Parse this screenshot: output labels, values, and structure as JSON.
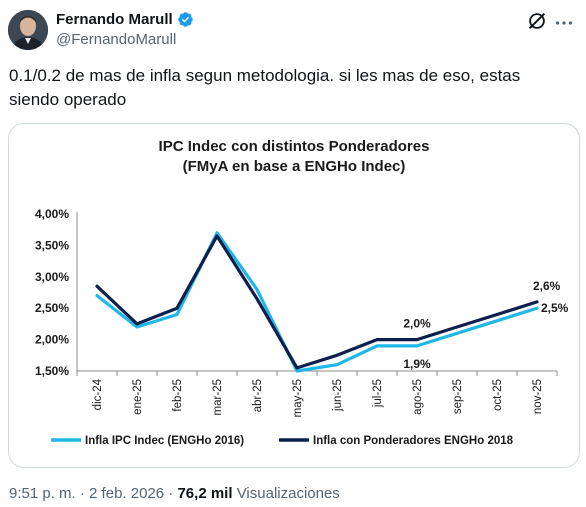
{
  "tweet": {
    "author_name": "Fernando Marull",
    "author_handle": "@FernandoMarull",
    "text": "0.1/0.2 de mas de infla segun metodologia. si les mas de eso, estas siendo operado",
    "time": "9:51 p. m.",
    "separator": " · ",
    "date": "2 feb. 2026",
    "views_count": "76,2 mil",
    "views_label": "Visualizaciones",
    "verified_color": "#1d9bf0",
    "icons": [
      "verified-badge-icon",
      "grok-icon",
      "more-icon"
    ]
  },
  "chart_data": {
    "type": "line",
    "title": "IPC Indec con distintos Ponderadores",
    "subtitle": "(FMyA en base a ENGHo Indec)",
    "categories": [
      "dic-24",
      "ene-25",
      "feb-25",
      "mar-25",
      "abr-25",
      "may-25",
      "jun-25",
      "jul-25",
      "ago-25",
      "sep-25",
      "oct-25",
      "nov-25"
    ],
    "y_ticks": [
      "4,00%",
      "3,50%",
      "3,00%",
      "2,50%",
      "2,00%",
      "1,50%"
    ],
    "ylim": [
      1.5,
      4.0
    ],
    "series": [
      {
        "name": "Infla IPC Indec (ENGHo 2016)",
        "color": "#1fb7e8",
        "values": [
          2.7,
          2.2,
          2.4,
          3.7,
          2.8,
          1.5,
          1.6,
          1.9,
          1.9,
          2.1,
          2.3,
          2.5
        ]
      },
      {
        "name": "Infla con Ponderadores ENGHo 2018",
        "color": "#0d1f4c",
        "values": [
          2.85,
          2.25,
          2.5,
          3.65,
          2.65,
          1.55,
          1.75,
          2.0,
          2.0,
          2.2,
          2.4,
          2.6
        ]
      }
    ],
    "data_labels": [
      {
        "text": "2,0%",
        "category": "ago-25",
        "value": 2.0,
        "series": 1,
        "place": "above"
      },
      {
        "text": "1,9%",
        "category": "ago-25",
        "value": 1.9,
        "series": 0,
        "place": "below"
      },
      {
        "text": "2,6%",
        "category": "nov-25",
        "value": 2.6,
        "series": 1,
        "place": "above"
      },
      {
        "text": "2,5%",
        "category": "nov-25",
        "value": 2.5,
        "series": 0,
        "place": "right"
      }
    ],
    "legend_position": "bottom",
    "grid": false
  }
}
